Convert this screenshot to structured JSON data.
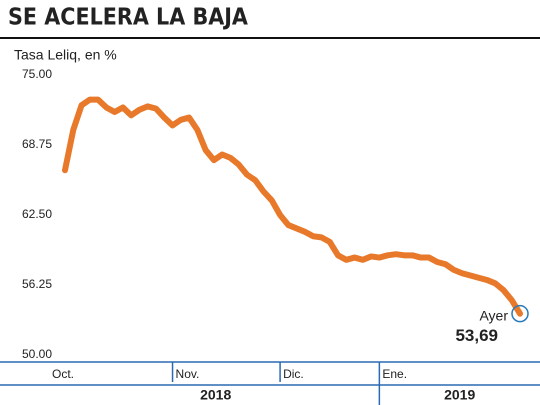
{
  "chart_data": {
    "type": "line",
    "title": "SE ACELERA LA BAJA",
    "subtitle": "Tasa Leliq, en %",
    "categories": [
      "Oct.",
      null,
      null,
      null,
      null,
      null,
      null,
      null,
      null,
      null,
      null,
      null,
      null,
      "Nov.",
      null,
      null,
      null,
      null,
      null,
      null,
      null,
      null,
      null,
      null,
      null,
      null,
      "Dic.",
      null,
      null,
      null,
      null,
      null,
      null,
      null,
      null,
      null,
      null,
      null,
      "Ene.",
      null,
      null,
      null,
      null,
      null,
      null,
      null,
      null,
      null,
      null,
      null,
      null,
      null,
      null,
      null,
      null,
      null
    ],
    "years": [
      "2018",
      "2019"
    ],
    "series": [
      {
        "name": "Tasa Leliq",
        "color": "#e8782a",
        "values": [
          66.5,
          70.1,
          72.3,
          72.8,
          72.8,
          72.1,
          71.7,
          72.1,
          71.4,
          71.9,
          72.2,
          72.0,
          71.2,
          70.5,
          71.0,
          71.2,
          70.1,
          68.3,
          67.4,
          67.9,
          67.6,
          67.0,
          66.1,
          65.6,
          64.6,
          63.8,
          62.5,
          61.6,
          61.3,
          61.0,
          60.6,
          60.5,
          60.1,
          58.9,
          58.5,
          58.7,
          58.5,
          58.8,
          58.7,
          58.9,
          59.0,
          58.9,
          58.9,
          58.7,
          58.7,
          58.3,
          58.1,
          57.6,
          57.3,
          57.1,
          56.9,
          56.7,
          56.4,
          55.8,
          54.9,
          53.69
        ],
        "value_labels": [
          null,
          null,
          null,
          null,
          null,
          null,
          null,
          null,
          null,
          null,
          null,
          null,
          null,
          null,
          null,
          null,
          null,
          null,
          null,
          null,
          null,
          null,
          null,
          null,
          null,
          null,
          null,
          null,
          null,
          null,
          null,
          null,
          null,
          null,
          null,
          null,
          null,
          null,
          null,
          null,
          null,
          null,
          null,
          null,
          null,
          null,
          null,
          null,
          null,
          null,
          null,
          null,
          null,
          null,
          null,
          "53,69"
        ]
      }
    ],
    "annotation": "Ayer",
    "marker_color": "#2a7ab8",
    "ylim": [
      50,
      75
    ],
    "yticks": [
      {
        "value": 50,
        "label": "50.00"
      },
      {
        "value": 56.25,
        "label": "56.25"
      },
      {
        "value": 62.5,
        "label": "62.50"
      },
      {
        "value": 68.75,
        "label": "68.75"
      },
      {
        "value": 75,
        "label": "75.00"
      }
    ]
  }
}
